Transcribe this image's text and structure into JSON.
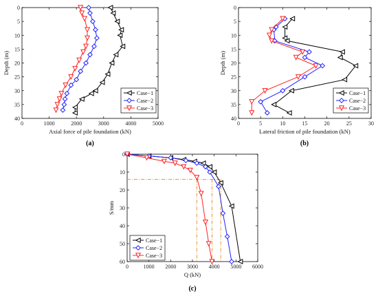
{
  "charts": [
    {
      "id": "a",
      "type": "line",
      "panel_label": "(a)",
      "xlabel": "Axial force of pile foundation (kN)",
      "ylabel": "Depth (m)",
      "xlim": [
        0,
        5000
      ],
      "ylim": [
        0,
        40
      ],
      "y_inverted": true,
      "xticks": [
        0,
        1000,
        2000,
        3000,
        4000,
        5000
      ],
      "yticks": [
        0,
        5,
        10,
        15,
        20,
        25,
        30,
        35,
        40
      ],
      "legend_position": "bottom-right",
      "series": [
        {
          "name": "Case−1",
          "color": "#000000",
          "marker": "triangle-left",
          "points": [
            [
              3250,
              0
            ],
            [
              3350,
              2
            ],
            [
              3500,
              5
            ],
            [
              3650,
              8
            ],
            [
              3600,
              10
            ],
            [
              3700,
              14
            ],
            [
              3450,
              17
            ],
            [
              3300,
              20
            ],
            [
              3150,
              24
            ],
            [
              2950,
              27
            ],
            [
              2700,
              30
            ],
            [
              2550,
              31
            ],
            [
              2200,
              33
            ],
            [
              1950,
              36
            ],
            [
              1950,
              38
            ]
          ]
        },
        {
          "name": "Case−2",
          "color": "#1f1fff",
          "marker": "diamond",
          "points": [
            [
              2450,
              0
            ],
            [
              2500,
              2
            ],
            [
              2600,
              5
            ],
            [
              2700,
              8
            ],
            [
              2750,
              11
            ],
            [
              2650,
              14
            ],
            [
              2500,
              17
            ],
            [
              2350,
              20
            ],
            [
              2150,
              23
            ],
            [
              2000,
              26
            ],
            [
              1800,
              28
            ],
            [
              1650,
              31
            ],
            [
              1580,
              33
            ],
            [
              1550,
              35
            ],
            [
              1500,
              37
            ]
          ]
        },
        {
          "name": "Case−3",
          "color": "#ff2020",
          "marker": "triangle-down",
          "points": [
            [
              2150,
              0
            ],
            [
              2200,
              2
            ],
            [
              2300,
              4
            ],
            [
              2400,
              8
            ],
            [
              2400,
              11
            ],
            [
              2350,
              14
            ],
            [
              2250,
              16
            ],
            [
              2100,
              19
            ],
            [
              1950,
              22
            ],
            [
              1800,
              25
            ],
            [
              1600,
              28
            ],
            [
              1450,
              31
            ],
            [
              1380,
              33
            ],
            [
              1300,
              35
            ],
            [
              1250,
              37
            ]
          ]
        }
      ]
    },
    {
      "id": "b",
      "type": "line",
      "panel_label": "(b)",
      "xlabel": "Lateral friction of pile foundation (kN)",
      "ylabel": "Depth (m)",
      "xlim": [
        0,
        30
      ],
      "ylim": [
        0,
        40
      ],
      "y_inverted": true,
      "xticks": [
        0,
        5,
        10,
        15,
        20,
        25,
        30
      ],
      "yticks": [
        0,
        5,
        10,
        15,
        20,
        25,
        30,
        35,
        40
      ],
      "legend_position": "bottom-right",
      "series": [
        {
          "name": "Case−1",
          "color": "#000000",
          "marker": "triangle-left",
          "points": [
            [
              12.2,
              4
            ],
            [
              10.5,
              7
            ],
            [
              10.5,
              11
            ],
            [
              11.0,
              12
            ],
            [
              23.5,
              16
            ],
            [
              23.0,
              18
            ],
            [
              26.5,
              21
            ],
            [
              24.0,
              26
            ],
            [
              12.0,
              30
            ],
            [
              8.0,
              35
            ],
            [
              11.5,
              38
            ]
          ]
        },
        {
          "name": "Case−2",
          "color": "#1f1fff",
          "marker": "diamond",
          "points": [
            [
              10.5,
              4
            ],
            [
              8.5,
              7
            ],
            [
              8.0,
              8
            ],
            [
              8.2,
              12
            ],
            [
              16.0,
              16
            ],
            [
              15.0,
              18
            ],
            [
              19.0,
              21
            ],
            [
              15.0,
              25
            ],
            [
              10.0,
              30
            ],
            [
              5.0,
              34
            ],
            [
              6.5,
              38
            ]
          ]
        },
        {
          "name": "Case−3",
          "color": "#ff2020",
          "marker": "triangle-down",
          "points": [
            [
              10.0,
              4
            ],
            [
              7.5,
              8
            ],
            [
              7.0,
              10
            ],
            [
              7.5,
              12
            ],
            [
              14.5,
              16
            ],
            [
              13.0,
              18
            ],
            [
              17.5,
              21
            ],
            [
              13.5,
              25
            ],
            [
              6.0,
              30
            ],
            [
              3.0,
              34
            ],
            [
              3.0,
              38
            ]
          ]
        }
      ]
    },
    {
      "id": "c",
      "type": "line",
      "panel_label": "(c)",
      "xlabel": "Q (kN)",
      "ylabel": "S/mm",
      "xlim": [
        0,
        6000
      ],
      "ylim": [
        0,
        60
      ],
      "y_inverted": true,
      "xticks": [
        0,
        1000,
        2000,
        3000,
        4000,
        5000,
        6000
      ],
      "yticks": [
        0,
        10,
        20,
        30,
        40,
        50,
        60
      ],
      "legend_position": "bottom-left",
      "reference_lines": {
        "color": "#e08a1e",
        "y_value": 14,
        "x_values": [
          3200,
          3900,
          4300
        ]
      },
      "series": [
        {
          "name": "Case−1",
          "color": "#000000",
          "marker": "triangle-left",
          "points": [
            [
              0,
              0
            ],
            [
              1000,
              1
            ],
            [
              2000,
              2
            ],
            [
              2600,
              3
            ],
            [
              3100,
              4
            ],
            [
              3500,
              5
            ],
            [
              3800,
              7
            ],
            [
              4000,
              10
            ],
            [
              4300,
              16
            ],
            [
              4800,
              29
            ],
            [
              5200,
              60
            ]
          ]
        },
        {
          "name": "Case−2",
          "color": "#1f1fff",
          "marker": "diamond",
          "points": [
            [
              0,
              0
            ],
            [
              1000,
              1
            ],
            [
              2000,
              2
            ],
            [
              2700,
              3.5
            ],
            [
              3200,
              5
            ],
            [
              3600,
              7
            ],
            [
              3800,
              10
            ],
            [
              4200,
              18
            ],
            [
              4400,
              33
            ],
            [
              4600,
              46
            ],
            [
              4800,
              60
            ]
          ]
        },
        {
          "name": "Case−3",
          "color": "#ff2020",
          "marker": "triangle-down",
          "points": [
            [
              0,
              0
            ],
            [
              900,
              2
            ],
            [
              1700,
              4
            ],
            [
              2200,
              5
            ],
            [
              2600,
              7
            ],
            [
              2900,
              9
            ],
            [
              3200,
              13
            ],
            [
              3400,
              22
            ],
            [
              3600,
              38
            ],
            [
              3750,
              50
            ],
            [
              3900,
              60
            ]
          ]
        }
      ]
    }
  ]
}
